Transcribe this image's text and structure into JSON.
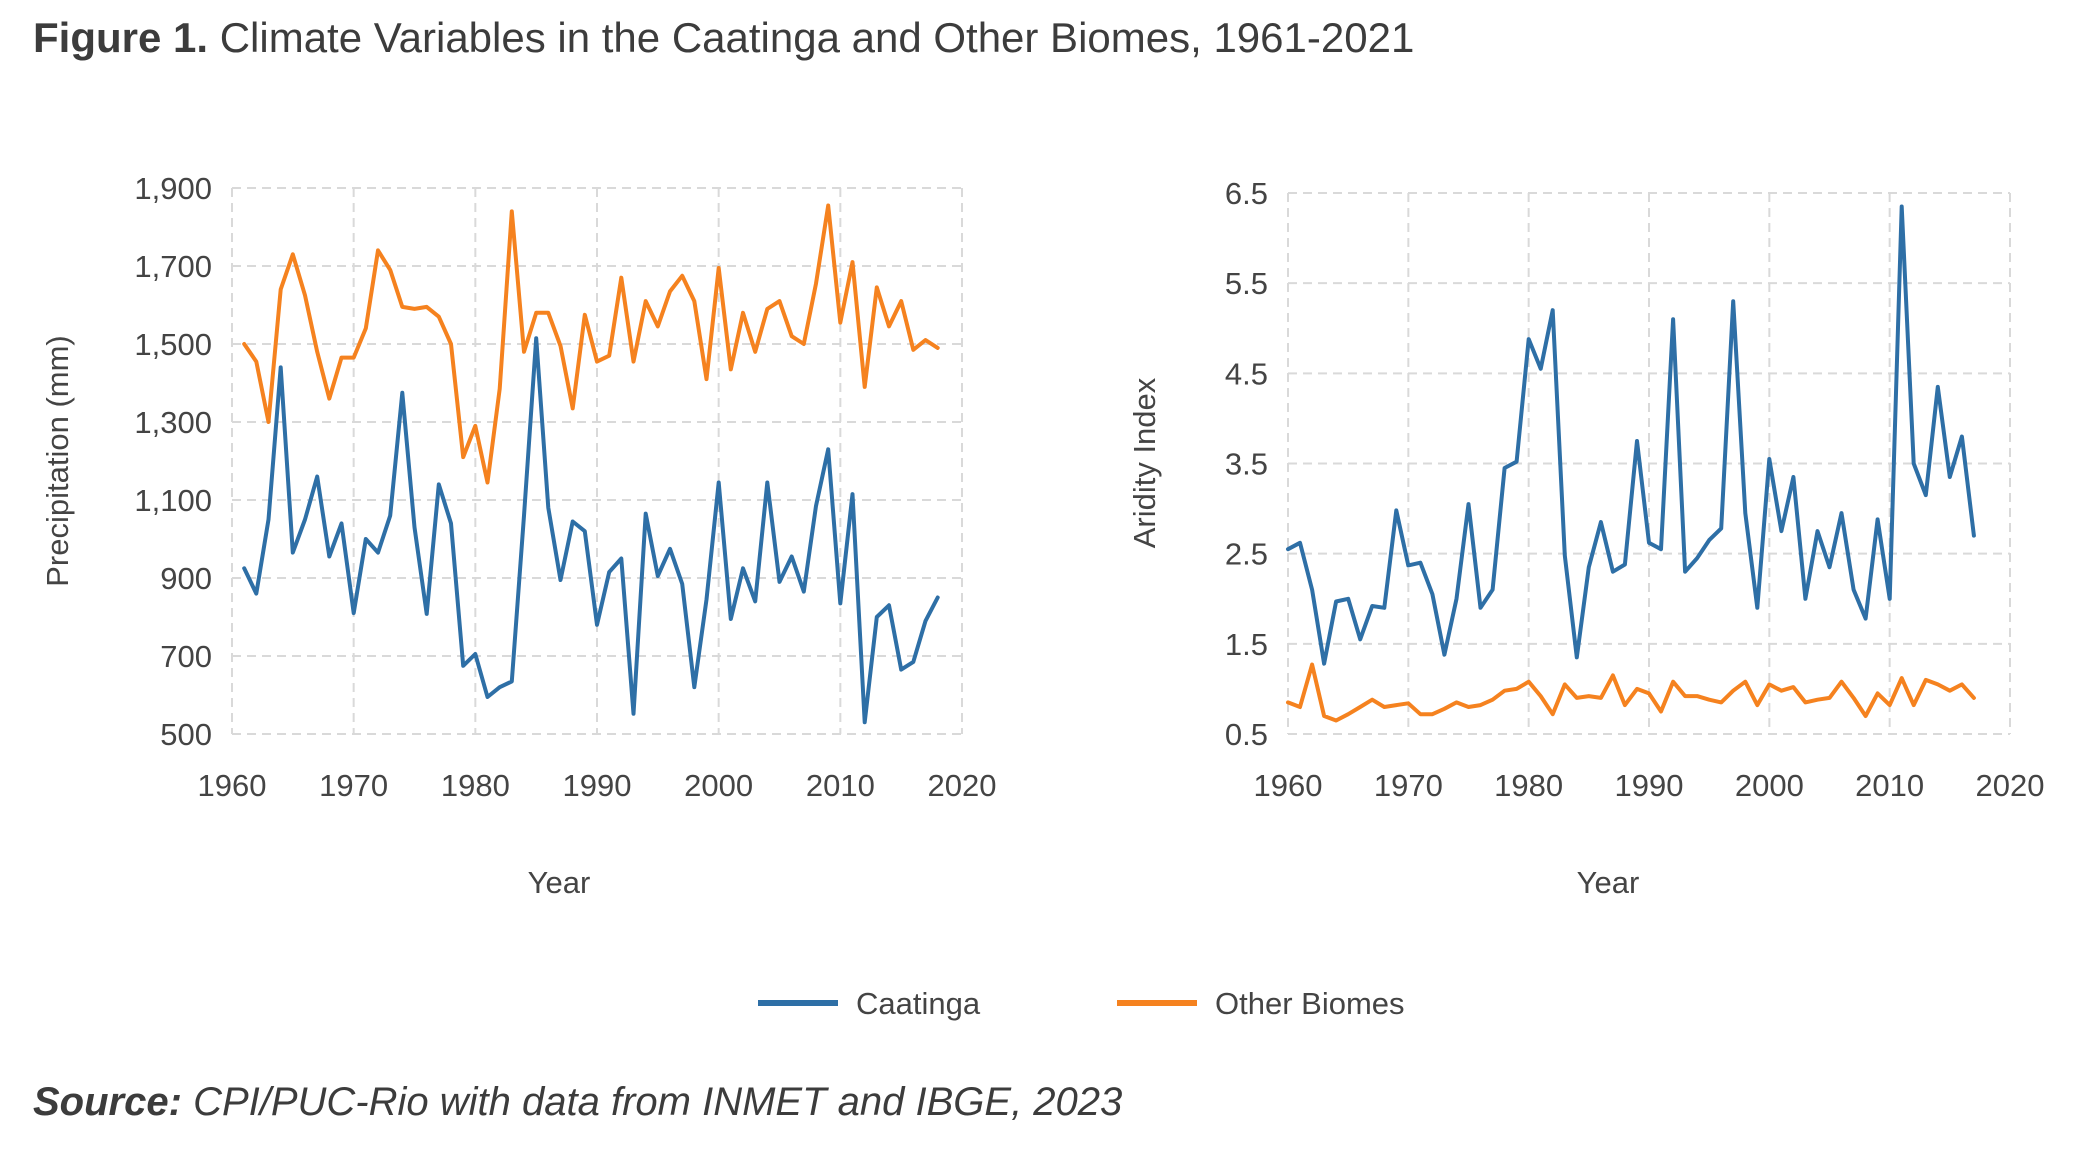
{
  "figure": {
    "label": "Figure 1.",
    "title": "Climate Variables in the Caatinga and Other Biomes, 1961-2021"
  },
  "source": {
    "label": "Source:",
    "text": "CPI/PUC-Rio with data from INMET and IBGE, 2023"
  },
  "colors": {
    "caatinga": "#2e6fa6",
    "other_biomes": "#f5821f",
    "grid": "#d9d9d9"
  },
  "legend": [
    {
      "name": "Caatinga",
      "color": "#2e6fa6"
    },
    {
      "name": "Other Biomes",
      "color": "#f5821f"
    }
  ],
  "chart_data": [
    {
      "type": "line",
      "xlabel": "Year",
      "ylabel": "Precipitation (mm)",
      "xlim": [
        1960,
        2020
      ],
      "ylim": [
        500,
        1900
      ],
      "xticks": [
        1960,
        1970,
        1980,
        1990,
        2000,
        2010,
        2020
      ],
      "yticks": [
        500,
        700,
        900,
        1100,
        1300,
        1500,
        1700,
        1900
      ],
      "ytick_labels": [
        "500",
        "700",
        "900",
        "1,100",
        "1,300",
        "1,500",
        "1,700",
        "1,900"
      ],
      "grid": true,
      "x": [
        1961,
        1962,
        1963,
        1964,
        1965,
        1966,
        1967,
        1968,
        1969,
        1970,
        1971,
        1972,
        1973,
        1974,
        1975,
        1976,
        1977,
        1978,
        1979,
        1980,
        1981,
        1982,
        1983,
        1984,
        1985,
        1986,
        1987,
        1988,
        1989,
        1990,
        1991,
        1992,
        1993,
        1994,
        1995,
        1996,
        1997,
        1998,
        1999,
        2000,
        2001,
        2002,
        2003,
        2004,
        2005,
        2006,
        2007,
        2008,
        2009,
        2010,
        2011,
        2012,
        2013,
        2014,
        2015,
        2016,
        2017,
        2018
      ],
      "series": [
        {
          "name": "Caatinga",
          "values": [
            925,
            860,
            1050,
            1440,
            965,
            1050,
            1160,
            955,
            1040,
            810,
            1000,
            965,
            1060,
            1375,
            1030,
            808,
            1140,
            1040,
            675,
            705,
            595,
            620,
            635,
            1060,
            1515,
            1080,
            895,
            1045,
            1020,
            780,
            915,
            950,
            552,
            1065,
            905,
            975,
            885,
            620,
            845,
            1145,
            795,
            925,
            840,
            1145,
            890,
            955,
            865,
            1085,
            1230,
            835,
            1115,
            530,
            800,
            830,
            665,
            685,
            790,
            850
          ]
        },
        {
          "name": "Other Biomes",
          "values": [
            1500,
            1455,
            1300,
            1640,
            1730,
            1625,
            1480,
            1360,
            1465,
            1465,
            1540,
            1740,
            1690,
            1595,
            1590,
            1595,
            1570,
            1500,
            1210,
            1290,
            1145,
            1385,
            1840,
            1480,
            1580,
            1580,
            1495,
            1335,
            1575,
            1455,
            1470,
            1670,
            1455,
            1610,
            1545,
            1635,
            1675,
            1610,
            1410,
            1695,
            1435,
            1580,
            1480,
            1590,
            1610,
            1520,
            1500,
            1655,
            1855,
            1555,
            1710,
            1390,
            1645,
            1545,
            1610,
            1485,
            1510,
            1490
          ]
        }
      ]
    },
    {
      "type": "line",
      "xlabel": "Year",
      "ylabel": "Aridity Index",
      "xlim": [
        1960,
        2020
      ],
      "ylim": [
        0.5,
        6.5
      ],
      "xticks": [
        1960,
        1970,
        1980,
        1990,
        2000,
        2010,
        2020
      ],
      "yticks": [
        0.5,
        1.5,
        2.5,
        3.5,
        4.5,
        5.5,
        6.5
      ],
      "ytick_labels": [
        "0.5",
        "1.5",
        "2.5",
        "3.5",
        "4.5",
        "5.5",
        "6.5"
      ],
      "grid": true,
      "x": [
        1960,
        1961,
        1962,
        1963,
        1964,
        1965,
        1966,
        1967,
        1968,
        1969,
        1970,
        1971,
        1972,
        1973,
        1974,
        1975,
        1976,
        1977,
        1978,
        1979,
        1980,
        1981,
        1982,
        1983,
        1984,
        1985,
        1986,
        1987,
        1988,
        1989,
        1990,
        1991,
        1992,
        1993,
        1994,
        1995,
        1996,
        1997,
        1998,
        1999,
        2000,
        2001,
        2002,
        2003,
        2004,
        2005,
        2006,
        2007,
        2008,
        2009,
        2010,
        2011,
        2012,
        2013,
        2014,
        2015,
        2016,
        2017
      ],
      "series": [
        {
          "name": "Caatinga",
          "values": [
            2.55,
            2.62,
            2.1,
            1.28,
            1.97,
            2.0,
            1.55,
            1.92,
            1.9,
            2.98,
            2.37,
            2.4,
            2.05,
            1.38,
            2.0,
            3.05,
            1.9,
            2.1,
            3.45,
            3.52,
            4.88,
            4.55,
            5.2,
            2.48,
            1.35,
            2.35,
            2.85,
            2.3,
            2.38,
            3.75,
            2.62,
            2.55,
            5.1,
            2.3,
            2.45,
            2.65,
            2.78,
            5.3,
            2.95,
            1.9,
            3.55,
            2.75,
            3.35,
            2.0,
            2.75,
            2.35,
            2.95,
            2.1,
            1.78,
            2.88,
            2.0,
            6.35,
            3.5,
            3.15,
            4.35,
            3.35,
            3.8,
            2.7
          ]
        },
        {
          "name": "Other Biomes",
          "values": [
            0.85,
            0.8,
            1.27,
            0.7,
            0.65,
            0.72,
            0.8,
            0.88,
            0.8,
            0.82,
            0.84,
            0.72,
            0.72,
            0.78,
            0.85,
            0.8,
            0.82,
            0.88,
            0.98,
            1.0,
            1.08,
            0.92,
            0.72,
            1.05,
            0.9,
            0.92,
            0.9,
            1.15,
            0.82,
            1.0,
            0.95,
            0.75,
            1.08,
            0.92,
            0.92,
            0.88,
            0.85,
            0.98,
            1.08,
            0.82,
            1.05,
            0.98,
            1.02,
            0.85,
            0.88,
            0.9,
            1.08,
            0.9,
            0.7,
            0.95,
            0.82,
            1.12,
            0.82,
            1.1,
            1.05,
            0.98,
            1.05,
            0.9
          ]
        }
      ]
    }
  ]
}
